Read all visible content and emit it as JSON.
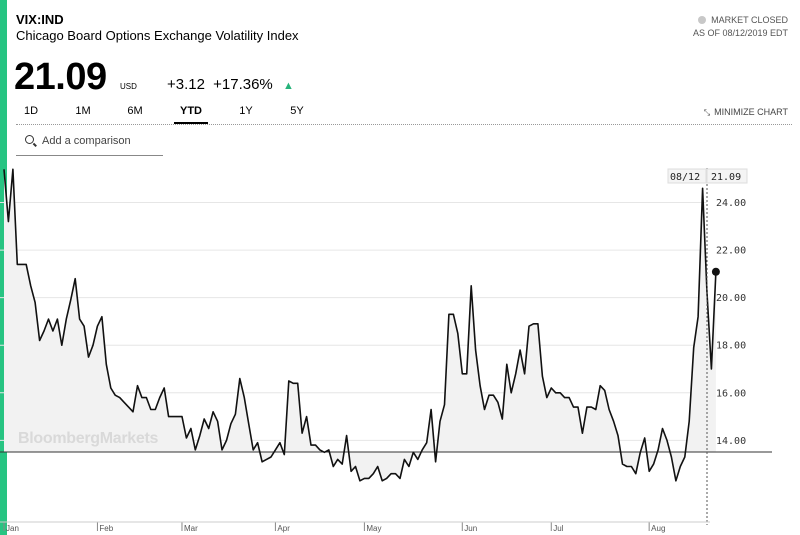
{
  "header": {
    "ticker": "VIX:IND",
    "name": "Chicago Board Options Exchange Volatility Index",
    "market_status": "MARKET CLOSED",
    "as_of": "AS OF 08/12/2019 EDT"
  },
  "quote": {
    "price": "21.09",
    "currency": "USD",
    "change": "+3.12",
    "change_pct": "+17.36%",
    "direction_icon": "▲"
  },
  "tabs": [
    "1D",
    "1M",
    "6M",
    "YTD",
    "1Y",
    "5Y"
  ],
  "active_tab": "YTD",
  "minimize_label": "MINIMIZE CHART",
  "compare_placeholder": "Add a comparison",
  "watermark": "BloombergMarkets",
  "colors": {
    "accent": "#27c482",
    "line": "#111111",
    "fill": "#f2f2f2",
    "up": "#27b37a"
  },
  "chart_data": {
    "type": "area",
    "last_date_label": "08/12",
    "last_value_label": "21.09",
    "yticks": [
      "14.00",
      "16.00",
      "18.00",
      "20.00",
      "22.00",
      "24.00"
    ],
    "ylim": [
      9.6,
      26.0
    ],
    "xlim": [
      0,
      158
    ],
    "month_labels": [
      {
        "label": "Jan",
        "x": 0
      },
      {
        "label": "Feb",
        "x": 21
      },
      {
        "label": "Mar",
        "x": 40
      },
      {
        "label": "Apr",
        "x": 61
      },
      {
        "label": "May",
        "x": 81
      },
      {
        "label": "Jun",
        "x": 103
      },
      {
        "label": "Jul",
        "x": 123
      },
      {
        "label": "Aug",
        "x": 145
      }
    ],
    "grid": true,
    "values": [
      25.4,
      23.2,
      25.4,
      21.4,
      21.4,
      21.4,
      20.5,
      19.8,
      18.2,
      18.6,
      19.1,
      18.6,
      19.1,
      18.0,
      19.1,
      19.9,
      20.8,
      19.1,
      18.8,
      17.5,
      18.0,
      18.8,
      19.2,
      17.2,
      16.2,
      15.9,
      15.8,
      15.6,
      15.4,
      15.2,
      16.3,
      15.8,
      15.8,
      15.3,
      15.3,
      15.8,
      16.2,
      15.0,
      15.0,
      15.0,
      15.0,
      14.1,
      14.5,
      13.6,
      14.2,
      14.9,
      14.5,
      15.2,
      14.8,
      13.6,
      14.0,
      14.7,
      15.1,
      16.6,
      15.8,
      14.7,
      13.6,
      13.9,
      13.1,
      13.2,
      13.3,
      13.6,
      13.9,
      13.4,
      16.5,
      16.4,
      16.4,
      14.3,
      15.0,
      13.8,
      13.8,
      13.6,
      13.5,
      13.6,
      12.9,
      13.2,
      13.0,
      14.2,
      12.7,
      12.9,
      12.3,
      12.4,
      12.4,
      12.6,
      12.9,
      12.3,
      12.4,
      12.6,
      12.6,
      12.4,
      13.2,
      12.9,
      13.5,
      13.2,
      13.6,
      13.9,
      15.3,
      13.1,
      14.8,
      15.5,
      19.3,
      19.3,
      18.5,
      16.8,
      16.8,
      20.5,
      17.8,
      16.3,
      15.3,
      15.9,
      15.9,
      15.6,
      14.9,
      17.2,
      16.0,
      16.8,
      17.8,
      16.8,
      18.8,
      18.9,
      18.9,
      16.7,
      15.8,
      16.2,
      16.0,
      16.0,
      15.8,
      15.8,
      15.4,
      15.4,
      14.3,
      15.4,
      15.4,
      15.3,
      16.3,
      16.1,
      15.3,
      14.8,
      14.2,
      13.0,
      12.9,
      12.9,
      12.6,
      13.5,
      14.1,
      12.7,
      13.0,
      13.6,
      14.5,
      14.0,
      13.3,
      12.3,
      12.9,
      13.3,
      14.8,
      17.9,
      19.2,
      24.6,
      20.2,
      17.0,
      21.09
    ]
  }
}
